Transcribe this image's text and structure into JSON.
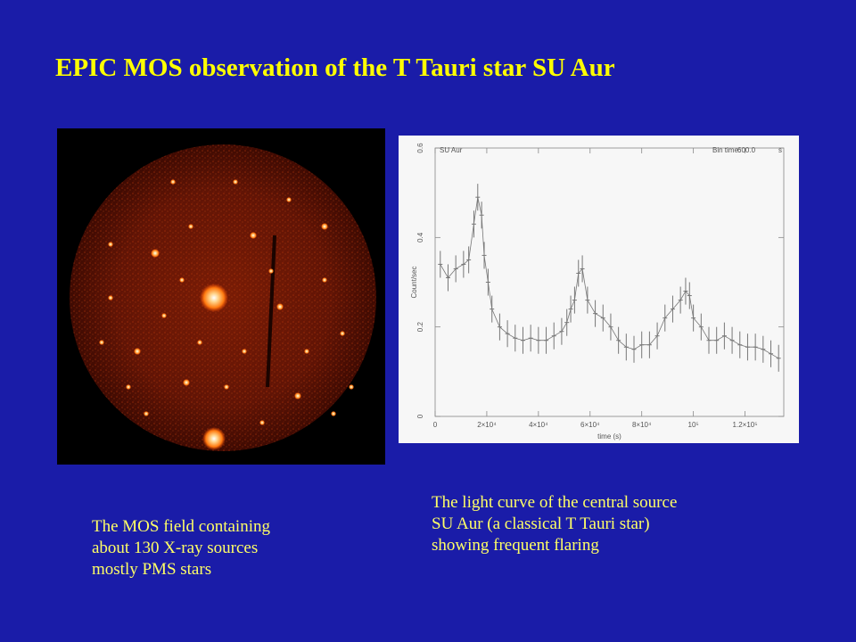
{
  "title": "EPIC MOS observation of the T Tauri star SU Aur",
  "colors": {
    "background": "#1a1ca8",
    "title": "#ffff00",
    "caption": "#ffff66",
    "plot_background": "#f7f7f7",
    "data": "#777777"
  },
  "left_caption": [
    "The MOS field containing",
    "about 130 X-ray sources",
    "mostly PMS stars"
  ],
  "right_caption": [
    "The light curve of the central source",
    "SU Aur (a classical T Tauri star)",
    "showing frequent flaring"
  ],
  "chart_data": {
    "type": "line",
    "title": "SU Aur",
    "annotation": {
      "label": "Bin time:",
      "value": "600.0",
      "unit": "s"
    },
    "xlabel": "time (s)",
    "ylabel": "Count/sec",
    "xlim": [
      0,
      135000
    ],
    "ylim": [
      0,
      0.6
    ],
    "xticks": [
      {
        "value": 0,
        "label": "0"
      },
      {
        "value": 20000,
        "label": "2×10⁴"
      },
      {
        "value": 40000,
        "label": "4×10⁴"
      },
      {
        "value": 60000,
        "label": "6×10⁴"
      },
      {
        "value": 80000,
        "label": "8×10⁴"
      },
      {
        "value": 100000,
        "label": "10⁵"
      },
      {
        "value": 120000,
        "label": "1.2×10⁵"
      }
    ],
    "yticks": [
      {
        "value": 0,
        "label": "0"
      },
      {
        "value": 0.2,
        "label": "0.2"
      },
      {
        "value": 0.4,
        "label": "0.4"
      },
      {
        "value": 0.6,
        "label": "0.6"
      }
    ],
    "grid": false,
    "error_bar": 0.03,
    "series": [
      {
        "points": [
          [
            2000,
            0.34
          ],
          [
            5000,
            0.31
          ],
          [
            8000,
            0.33
          ],
          [
            11000,
            0.34
          ],
          [
            13000,
            0.35
          ],
          [
            15000,
            0.43
          ],
          [
            16500,
            0.49
          ],
          [
            18000,
            0.45
          ],
          [
            19000,
            0.36
          ],
          [
            20500,
            0.3
          ],
          [
            22000,
            0.24
          ],
          [
            25000,
            0.2
          ],
          [
            28000,
            0.185
          ],
          [
            31000,
            0.175
          ],
          [
            34000,
            0.17
          ],
          [
            37000,
            0.175
          ],
          [
            40000,
            0.17
          ],
          [
            43000,
            0.17
          ],
          [
            46000,
            0.18
          ],
          [
            49000,
            0.19
          ],
          [
            51000,
            0.21
          ],
          [
            52500,
            0.24
          ],
          [
            54000,
            0.26
          ],
          [
            55500,
            0.32
          ],
          [
            57000,
            0.33
          ],
          [
            59000,
            0.26
          ],
          [
            62000,
            0.23
          ],
          [
            65000,
            0.22
          ],
          [
            68000,
            0.2
          ],
          [
            71000,
            0.17
          ],
          [
            74000,
            0.155
          ],
          [
            77000,
            0.15
          ],
          [
            80000,
            0.16
          ],
          [
            83000,
            0.16
          ],
          [
            86000,
            0.18
          ],
          [
            89000,
            0.22
          ],
          [
            92000,
            0.24
          ],
          [
            95000,
            0.26
          ],
          [
            97000,
            0.28
          ],
          [
            98500,
            0.27
          ],
          [
            100000,
            0.22
          ],
          [
            103000,
            0.2
          ],
          [
            106000,
            0.17
          ],
          [
            109000,
            0.17
          ],
          [
            112000,
            0.18
          ],
          [
            115000,
            0.17
          ],
          [
            118000,
            0.16
          ],
          [
            121000,
            0.155
          ],
          [
            124000,
            0.155
          ],
          [
            127000,
            0.15
          ],
          [
            130000,
            0.14
          ],
          [
            133000,
            0.13
          ]
        ]
      }
    ]
  }
}
